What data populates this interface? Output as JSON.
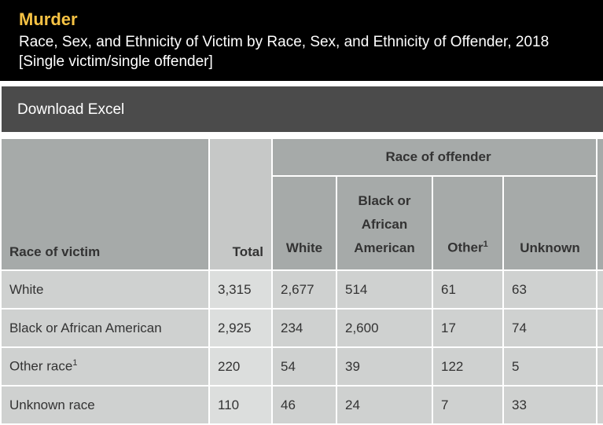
{
  "header": {
    "title": "Murder",
    "subtitle": "Race, Sex, and Ethnicity of Victim by Race, Sex, and Ethnicity of Offender, 2018",
    "note": "[Single victim/single offender]"
  },
  "toolbar": {
    "button": "Download Excel"
  },
  "table": {
    "row_header": "Race of victim",
    "total_header": "Total",
    "group_header": "Race of offender",
    "columns": [
      {
        "label": "White"
      },
      {
        "label": "Black or African American"
      },
      {
        "label": "Other",
        "note": "1"
      },
      {
        "label": "Unknown"
      }
    ],
    "rows": [
      {
        "label": "White",
        "cells": [
          "3,315",
          "2,677",
          "514",
          "61",
          "63"
        ]
      },
      {
        "label": "Black or African American",
        "cells": [
          "2,925",
          "234",
          "2,600",
          "17",
          "74"
        ]
      },
      {
        "label": "Other race",
        "note": "1",
        "cells": [
          "220",
          "54",
          "39",
          "122",
          "5"
        ]
      },
      {
        "label": "Unknown race",
        "cells": [
          "110",
          "46",
          "24",
          "7",
          "33"
        ]
      }
    ]
  }
}
